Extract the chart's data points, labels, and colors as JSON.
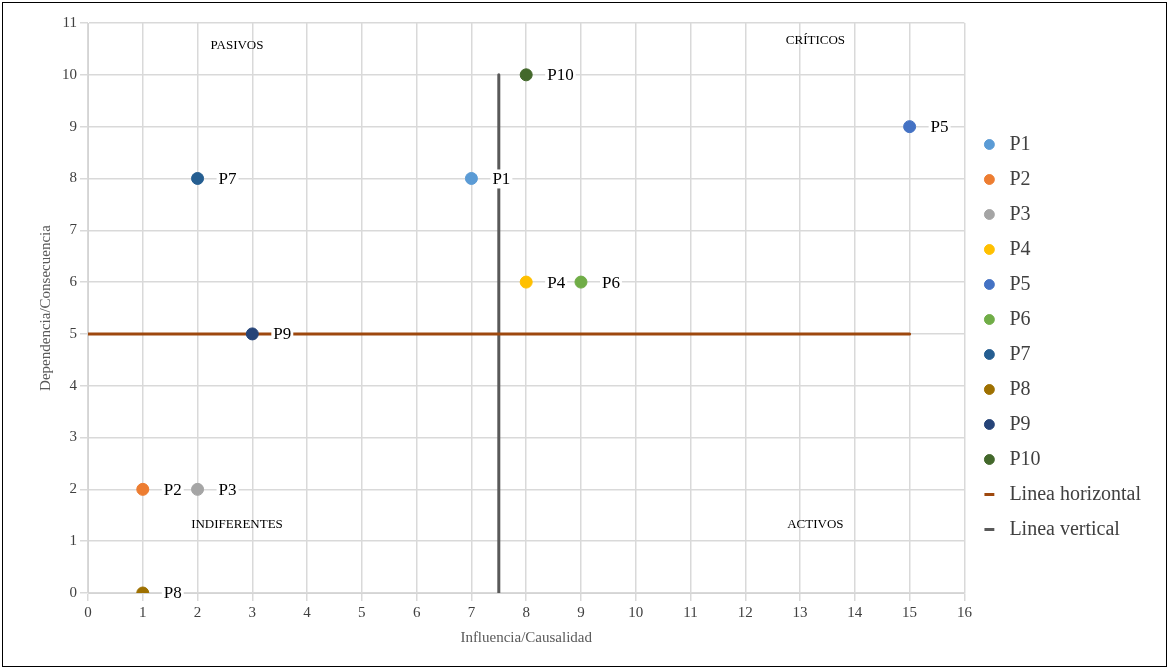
{
  "chart_data": {
    "type": "scatter",
    "xlabel": "Influencia/Causalidad",
    "ylabel": "Dependencia/Consecuencia",
    "xlim": [
      0,
      16
    ],
    "xticks": [
      0,
      1,
      2,
      3,
      4,
      5,
      6,
      7,
      8,
      9,
      10,
      11,
      12,
      13,
      14,
      15,
      16
    ],
    "ylim": [
      0,
      11
    ],
    "yticks": [
      0,
      1,
      2,
      3,
      4,
      5,
      6,
      7,
      8,
      9,
      10,
      11
    ],
    "grid": true,
    "legend": "right",
    "marker": "circle",
    "series": [
      {
        "name": "P1",
        "color": "#5b9bd5",
        "x": [
          7
        ],
        "values": [
          8
        ]
      },
      {
        "name": "P2",
        "color": "#ed7d31",
        "x": [
          1
        ],
        "values": [
          2
        ]
      },
      {
        "name": "P3",
        "color": "#a5a5a5",
        "x": [
          2
        ],
        "values": [
          2
        ]
      },
      {
        "name": "P4",
        "color": "#ffc000",
        "x": [
          8
        ],
        "values": [
          6
        ]
      },
      {
        "name": "P5",
        "color": "#4472c4",
        "x": [
          15
        ],
        "values": [
          9
        ]
      },
      {
        "name": "P6",
        "color": "#70ad47",
        "x": [
          9
        ],
        "values": [
          6
        ]
      },
      {
        "name": "P7",
        "color": "#255e91",
        "x": [
          2
        ],
        "values": [
          8
        ]
      },
      {
        "name": "P8",
        "color": "#9e7000",
        "x": [
          1
        ],
        "values": [
          0
        ]
      },
      {
        "name": "P9",
        "color": "#264478",
        "x": [
          3
        ],
        "values": [
          5
        ]
      },
      {
        "name": "P10",
        "color": "#43682b",
        "x": [
          8
        ],
        "values": [
          10
        ]
      },
      {
        "name": "Linea horizontal",
        "type": "line",
        "marker": "none",
        "color": "#9e480e",
        "x": [
          0,
          15
        ],
        "values": [
          5,
          5
        ]
      },
      {
        "name": "Linea vertical",
        "type": "line",
        "marker": "none",
        "color": "#595959",
        "x": [
          7.5,
          7.5
        ],
        "values": [
          0,
          10
        ]
      }
    ],
    "annotations": [
      "PASIVOS",
      "CRÍTICOS",
      "INDIFERENTES",
      "ACTIVOS"
    ]
  }
}
